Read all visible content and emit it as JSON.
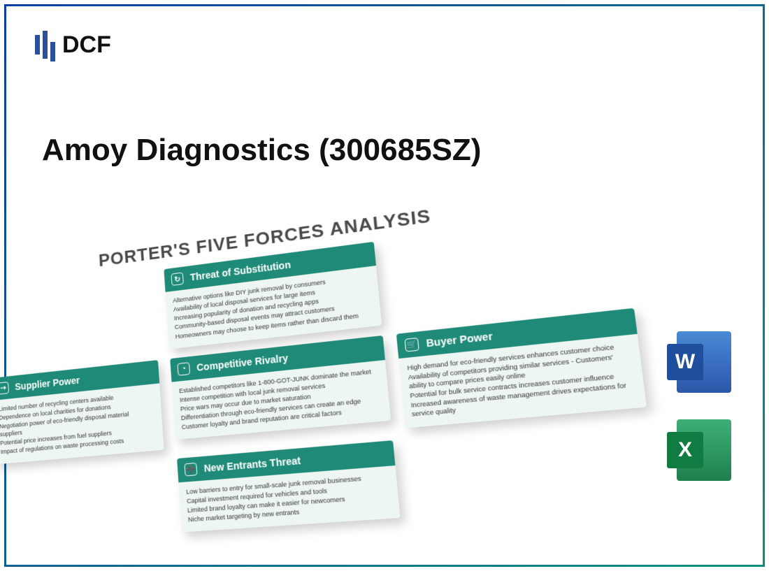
{
  "brand": {
    "name": "DCF"
  },
  "title": "Amoy Diagnostics (300685SZ)",
  "diagram": {
    "heading": "PORTER'S FIVE FORCES ANALYSIS",
    "colors": {
      "header_bg": "#1e8a77",
      "card_bg": "#eef6f4",
      "frame_gradient_from": "#0b3ea8",
      "frame_gradient_to": "#0a8f7a"
    },
    "cards": {
      "substitution": {
        "title": "Threat of Substitution",
        "icon": "↻",
        "lines": [
          "Alternative options like DIY junk removal by consumers",
          "Availability of local disposal services for large items",
          "Increasing popularity of donation and recycling apps",
          "Community-based disposal events may attract customers",
          "Homeowners may choose to keep items rather than discard them"
        ]
      },
      "supplier": {
        "title": "Supplier Power",
        "icon": "⇢",
        "lines": [
          "Limited number of recycling centers available",
          "Dependence on local charities for donations",
          "Negotiation power of eco-friendly disposal material suppliers",
          "Potential price increases from fuel suppliers",
          "Impact of regulations on waste processing costs"
        ]
      },
      "rivalry": {
        "title": "Competitive Rivalry",
        "icon": "◔",
        "lines": [
          "Established competitors like 1-800-GOT-JUNK dominate the market",
          "Intense competition with local junk removal services",
          "Price wars may occur due to market saturation",
          "Differentiation through eco-friendly services can create an edge",
          "Customer loyalty and brand reputation are critical factors"
        ]
      },
      "buyer": {
        "title": "Buyer Power",
        "icon": "🛒",
        "lines": [
          "High demand for eco-friendly services enhances customer choice",
          "Availability of competitors providing similar services - Customers' ability to compare prices easily online",
          "Potential for bulk service contracts increases customer influence",
          "Increased awareness of waste management drives expectations for service quality"
        ]
      },
      "entrants": {
        "title": "New Entrants Threat",
        "icon": "➕",
        "lines": [
          "Low barriers to entry for small-scale junk removal businesses",
          "Capital investment required for vehicles and tools",
          "Limited brand loyalty can make it easier for newcomers",
          "Niche market targeting by new entrants"
        ]
      }
    }
  },
  "file_icons": {
    "word": "W",
    "excel": "X"
  }
}
